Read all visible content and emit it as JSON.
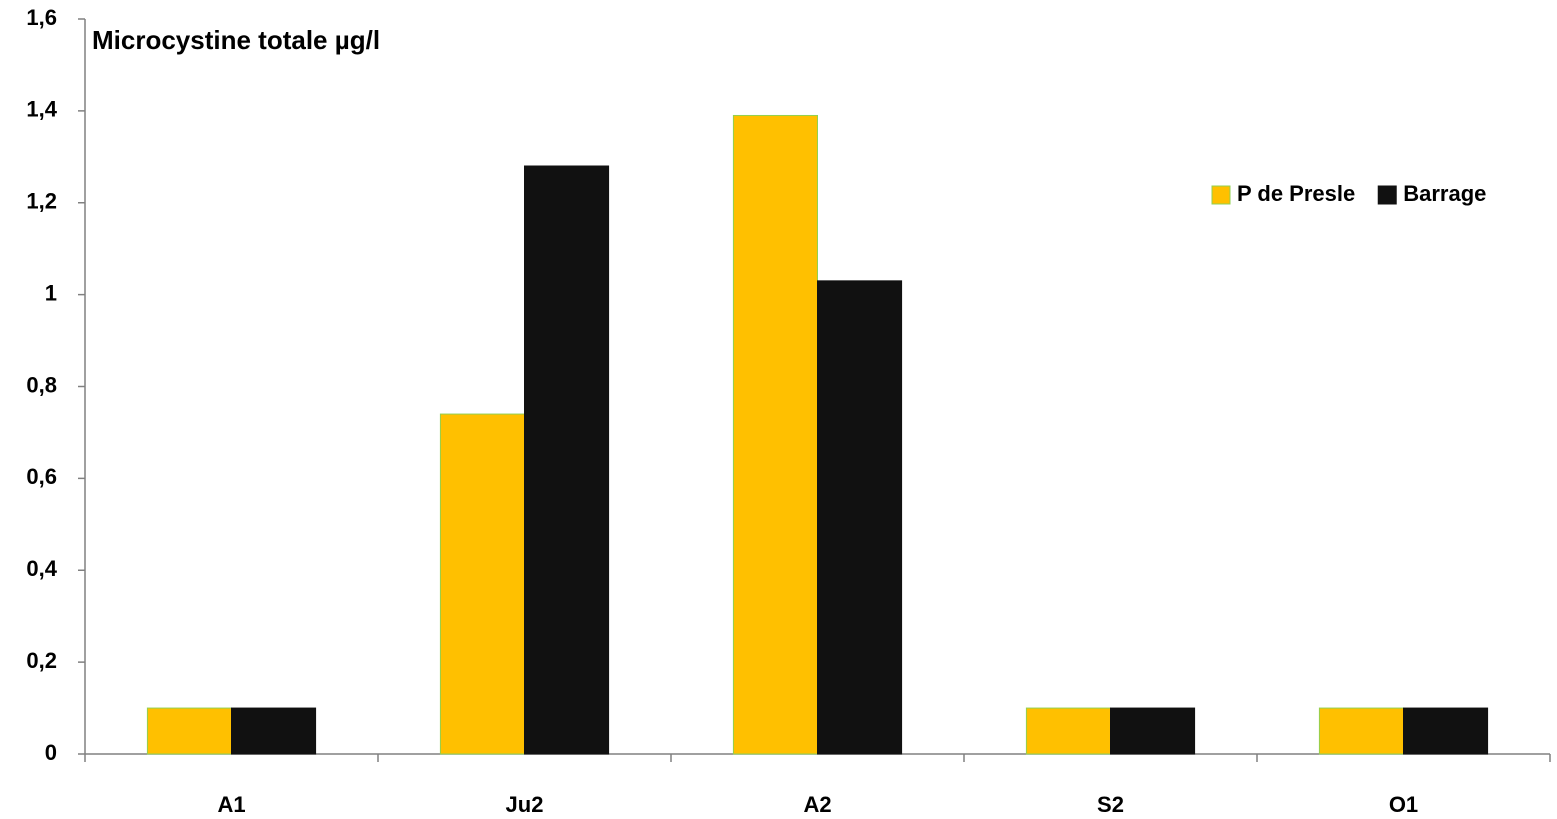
{
  "chart_data": {
    "type": "bar",
    "title": "Microcystine totale µg/l",
    "categories": [
      "A1",
      "Ju2",
      "A2",
      "S2",
      "O1"
    ],
    "series": [
      {
        "name": "P de Presle",
        "color": "#ffc000",
        "values": [
          0.1,
          0.74,
          1.39,
          0.1,
          0.1
        ]
      },
      {
        "name": "Barrage",
        "color": "#111111",
        "values": [
          0.1,
          1.28,
          1.03,
          0.1,
          0.1
        ]
      }
    ],
    "ylim": [
      0,
      1.6
    ],
    "yticks": [
      0,
      {
        "value": 0.2,
        "label": "0,2"
      },
      {
        "value": 0.4,
        "label": "0,4"
      },
      {
        "value": 0.6,
        "label": "0,6"
      },
      {
        "value": 0.8,
        "label": "0,8"
      },
      1,
      {
        "value": 1.2,
        "label": "1,2"
      },
      {
        "value": 1.4,
        "label": "1,4"
      },
      {
        "value": 1.6,
        "label": "1,6"
      }
    ],
    "grid": false,
    "legend": "top-right"
  }
}
